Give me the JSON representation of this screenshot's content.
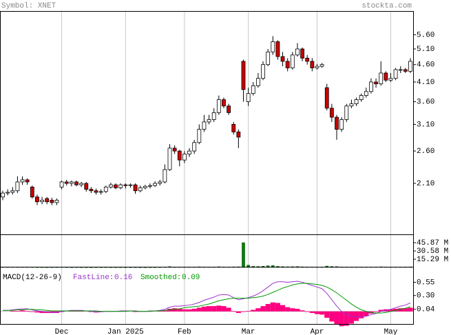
{
  "header": {
    "symbol": "Symbol: XNET",
    "site": "stockta.com"
  },
  "chart_data": [
    {
      "type": "candlestick",
      "log_scale": true,
      "ylim": [
        1.5,
        6.55
      ],
      "up_color": "#ffffff",
      "down_color": "#cc0000",
      "yticks": [
        {
          "value": 5.6,
          "label": "5.60"
        },
        {
          "value": 5.1,
          "label": "5.10"
        },
        {
          "value": 4.6,
          "label": "4.60"
        },
        {
          "value": 4.1,
          "label": "4.10"
        },
        {
          "value": 3.6,
          "label": "3.60"
        },
        {
          "value": 3.1,
          "label": "3.10"
        },
        {
          "value": 2.6,
          "label": "2.60"
        },
        {
          "value": 2.1,
          "label": "2.10"
        }
      ],
      "open": [
        1.92,
        1.97,
        1.98,
        2.0,
        2.12,
        2.15,
        2.05,
        1.92,
        1.86,
        1.9,
        1.88,
        1.85,
        2.05,
        2.12,
        2.1,
        2.12,
        2.08,
        2.1,
        2.02,
        2.0,
        1.98,
        1.99,
        2.05,
        2.08,
        2.04,
        2.08,
        2.07,
        2.08,
        2.0,
        2.04,
        2.06,
        2.07,
        2.1,
        2.12,
        2.3,
        2.65,
        2.6,
        2.45,
        2.55,
        2.6,
        2.75,
        3.0,
        3.15,
        3.2,
        3.35,
        3.65,
        3.5,
        3.1,
        2.95,
        4.7,
        3.6,
        3.8,
        4.0,
        4.2,
        4.6,
        5.0,
        5.35,
        4.85,
        4.7,
        4.5,
        4.9,
        5.1,
        4.8,
        4.7,
        4.5,
        4.55,
        3.95,
        3.45,
        3.25,
        3.0,
        3.2,
        3.5,
        3.55,
        3.65,
        3.75,
        3.85,
        4.1,
        4.05,
        4.35,
        4.15,
        4.2,
        4.45,
        4.45,
        4.4
      ],
      "high": [
        2.0,
        2.02,
        2.05,
        2.2,
        2.2,
        2.17,
        2.07,
        1.95,
        1.92,
        1.92,
        1.91,
        1.9,
        2.14,
        2.15,
        2.14,
        2.14,
        2.12,
        2.12,
        2.05,
        2.03,
        2.02,
        2.07,
        2.11,
        2.1,
        2.1,
        2.1,
        2.1,
        2.1,
        2.07,
        2.08,
        2.1,
        2.13,
        2.15,
        2.38,
        2.72,
        2.7,
        2.62,
        2.6,
        2.65,
        2.8,
        3.1,
        3.3,
        3.3,
        3.45,
        3.75,
        3.7,
        3.55,
        3.15,
        3.0,
        4.75,
        3.95,
        4.1,
        4.35,
        4.7,
        5.1,
        5.55,
        5.4,
        5.0,
        4.8,
        5.0,
        5.3,
        5.15,
        4.9,
        4.8,
        4.62,
        4.65,
        4.05,
        3.55,
        3.3,
        3.25,
        3.55,
        3.65,
        3.7,
        3.8,
        3.95,
        4.2,
        4.2,
        4.7,
        4.4,
        4.35,
        4.5,
        4.55,
        4.5,
        4.8
      ],
      "low": [
        1.88,
        1.94,
        1.95,
        1.97,
        2.08,
        2.08,
        1.9,
        1.82,
        1.83,
        1.83,
        1.82,
        1.82,
        2.02,
        2.07,
        2.06,
        2.06,
        2.05,
        1.99,
        1.97,
        1.95,
        1.95,
        1.97,
        2.03,
        2.02,
        2.02,
        2.03,
        2.04,
        1.96,
        1.98,
        2.02,
        2.03,
        2.05,
        2.07,
        2.1,
        2.28,
        2.55,
        2.35,
        2.4,
        2.5,
        2.55,
        2.72,
        2.95,
        3.1,
        3.15,
        3.3,
        3.45,
        3.3,
        2.9,
        2.65,
        3.6,
        3.5,
        3.75,
        3.95,
        4.15,
        4.55,
        4.9,
        4.75,
        4.55,
        4.4,
        4.45,
        4.85,
        4.7,
        4.6,
        4.4,
        4.45,
        4.5,
        3.4,
        3.15,
        2.8,
        2.95,
        3.15,
        3.45,
        3.5,
        3.6,
        3.7,
        3.8,
        3.95,
        4.0,
        4.1,
        4.1,
        4.15,
        4.35,
        4.35,
        4.35
      ],
      "close": [
        1.97,
        1.98,
        2.0,
        2.12,
        2.15,
        2.12,
        1.92,
        1.86,
        1.88,
        1.86,
        1.85,
        1.88,
        2.12,
        2.1,
        2.12,
        2.08,
        2.1,
        2.02,
        2.0,
        1.98,
        1.99,
        2.05,
        2.08,
        2.04,
        2.08,
        2.07,
        2.08,
        2.0,
        2.04,
        2.06,
        2.07,
        2.1,
        2.12,
        2.3,
        2.65,
        2.6,
        2.45,
        2.55,
        2.6,
        2.75,
        3.0,
        3.15,
        3.2,
        3.35,
        3.65,
        3.5,
        3.35,
        2.95,
        2.85,
        3.9,
        3.8,
        4.0,
        4.2,
        4.6,
        5.0,
        5.35,
        4.85,
        4.7,
        4.5,
        4.9,
        5.1,
        4.8,
        4.7,
        4.5,
        4.55,
        4.6,
        3.45,
        3.25,
        3.0,
        3.2,
        3.5,
        3.55,
        3.65,
        3.75,
        3.85,
        4.1,
        4.05,
        4.35,
        4.15,
        4.2,
        4.45,
        4.45,
        4.4,
        4.7
      ]
    },
    {
      "type": "bar",
      "color": "#008000",
      "ylim": [
        0,
        60
      ],
      "yticks": [
        {
          "value": 45.87,
          "label": "45.87 M"
        },
        {
          "value": 30.58,
          "label": "30.58 M"
        },
        {
          "value": 15.29,
          "label": "15.29 M"
        }
      ],
      "values": [
        0.8,
        0.6,
        0.7,
        0.9,
        0.8,
        0.6,
        0.7,
        0.5,
        0.5,
        0.4,
        0.5,
        0.5,
        0.9,
        0.5,
        0.4,
        0.5,
        0.4,
        0.4,
        0.3,
        0.4,
        0.4,
        0.5,
        0.4,
        0.4,
        0.4,
        0.4,
        0.4,
        0.4,
        0.3,
        0.3,
        0.4,
        0.4,
        0.5,
        0.9,
        1.5,
        0.9,
        0.8,
        0.7,
        0.7,
        0.9,
        1.2,
        1.0,
        0.9,
        1.0,
        1.3,
        0.9,
        0.8,
        1.1,
        1.2,
        45.9,
        4.2,
        2.0,
        1.8,
        2.2,
        3.1,
        3.5,
        2.0,
        1.5,
        1.2,
        1.4,
        1.6,
        1.2,
        1.0,
        0.9,
        0.8,
        0.8,
        2.5,
        1.8,
        1.5,
        1.0,
        0.9,
        0.8,
        0.8,
        0.8,
        0.7,
        0.9,
        0.8,
        1.2,
        0.9,
        0.8,
        0.9,
        0.8,
        0.7,
        1.1
      ]
    },
    {
      "type": "macd",
      "label": "MACD(12-26-9)",
      "fast_label": "FastLine:",
      "fast_value": 0.16,
      "signal_label": "Smoothed:",
      "signal_value": 0.09,
      "macd_color": "#9933cc",
      "signal_color": "#009900",
      "hist_color": "#ff0080",
      "ylim": [
        -0.25,
        0.83
      ],
      "yticks": [
        0.55,
        {
          "value": 0.3,
          "label": "0.30"
        },
        0.04
      ],
      "categories": [
        null,
        null,
        null,
        null,
        null,
        null,
        null,
        null,
        null,
        null,
        null,
        null,
        "Dec",
        null,
        null,
        null,
        null,
        null,
        null,
        null,
        null,
        null,
        null,
        null,
        null,
        "Jan 2025",
        null,
        null,
        null,
        null,
        null,
        null,
        null,
        null,
        null,
        null,
        null,
        "Feb",
        null,
        null,
        null,
        null,
        null,
        null,
        null,
        null,
        null,
        null,
        null,
        null,
        "Mar",
        null,
        null,
        null,
        null,
        null,
        null,
        null,
        null,
        null,
        null,
        null,
        null,
        null,
        "Apr",
        null,
        null,
        null,
        null,
        null,
        null,
        null,
        null,
        null,
        null,
        null,
        null,
        null,
        null,
        "May",
        null,
        null,
        null,
        null
      ],
      "macd": [
        0.02,
        0.02,
        0.03,
        0.04,
        0.05,
        0.05,
        0.03,
        0.01,
        0.0,
        -0.01,
        -0.02,
        -0.02,
        0.0,
        0.01,
        0.02,
        0.02,
        0.02,
        0.01,
        0.0,
        -0.01,
        -0.01,
        0.0,
        0.0,
        0.0,
        0.01,
        0.01,
        0.01,
        0.0,
        0.0,
        0.0,
        0.01,
        0.01,
        0.02,
        0.04,
        0.08,
        0.1,
        0.1,
        0.11,
        0.12,
        0.14,
        0.17,
        0.21,
        0.24,
        0.27,
        0.31,
        0.32,
        0.31,
        0.26,
        0.22,
        0.24,
        0.26,
        0.29,
        0.33,
        0.39,
        0.46,
        0.53,
        0.56,
        0.56,
        0.55,
        0.56,
        0.57,
        0.55,
        0.52,
        0.49,
        0.46,
        0.43,
        0.34,
        0.22,
        0.1,
        0.0,
        -0.06,
        -0.09,
        -0.1,
        -0.1,
        -0.09,
        -0.06,
        -0.04,
        0.0,
        0.02,
        0.04,
        0.07,
        0.1,
        0.12,
        0.16
      ],
      "signal": [
        0.02,
        0.02,
        0.02,
        0.03,
        0.03,
        0.04,
        0.04,
        0.03,
        0.03,
        0.02,
        0.01,
        0.01,
        0.01,
        0.01,
        0.01,
        0.01,
        0.01,
        0.01,
        0.01,
        0.01,
        0.0,
        0.0,
        0.0,
        0.0,
        0.0,
        0.0,
        0.01,
        0.01,
        0.0,
        0.0,
        0.0,
        0.01,
        0.01,
        0.02,
        0.03,
        0.04,
        0.05,
        0.07,
        0.08,
        0.09,
        0.1,
        0.12,
        0.14,
        0.17,
        0.2,
        0.22,
        0.24,
        0.25,
        0.25,
        0.25,
        0.25,
        0.26,
        0.27,
        0.29,
        0.32,
        0.36,
        0.4,
        0.44,
        0.47,
        0.5,
        0.52,
        0.53,
        0.53,
        0.52,
        0.51,
        0.49,
        0.46,
        0.41,
        0.35,
        0.28,
        0.21,
        0.14,
        0.08,
        0.03,
        0.0,
        -0.02,
        -0.03,
        -0.03,
        -0.02,
        0.0,
        0.02,
        0.04,
        0.06,
        0.09
      ],
      "hist": [
        0,
        0,
        0.01,
        0.01,
        0.02,
        0.01,
        -0.01,
        -0.02,
        -0.03,
        -0.03,
        -0.03,
        -0.03,
        -0.01,
        0,
        0.01,
        0.01,
        0.01,
        0,
        -0.01,
        -0.02,
        -0.01,
        0,
        0,
        0,
        0.01,
        0.01,
        0,
        -0.01,
        0,
        0,
        0.01,
        0,
        0.01,
        0.02,
        0.05,
        0.06,
        0.05,
        0.04,
        0.04,
        0.05,
        0.07,
        0.09,
        0.1,
        0.1,
        0.11,
        0.1,
        0.07,
        0.01,
        -0.03,
        -0.01,
        0.01,
        0.03,
        0.06,
        0.1,
        0.14,
        0.17,
        0.16,
        0.12,
        0.08,
        0.06,
        0.05,
        0.02,
        -0.01,
        -0.03,
        -0.05,
        -0.06,
        -0.12,
        -0.19,
        -0.25,
        -0.28,
        -0.27,
        -0.23,
        -0.18,
        -0.13,
        -0.09,
        -0.04,
        -0.01,
        0.03,
        0.04,
        0.04,
        0.05,
        0.06,
        0.06,
        0.07
      ]
    }
  ]
}
